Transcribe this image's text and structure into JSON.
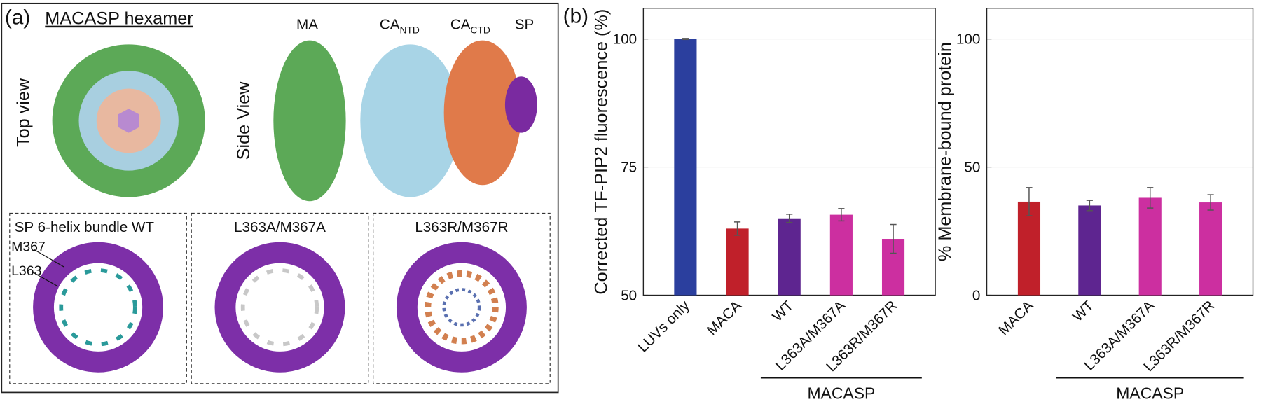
{
  "panel_a": {
    "label": "(a)",
    "title": "MACASP hexamer",
    "top_view": "Top view",
    "side_view": "Side View",
    "domains": {
      "ma": "MA",
      "ca_ntd": "CA",
      "ca_ntd_sub": "NTD",
      "ca_ctd": "CA",
      "ca_ctd_sub": "CTD",
      "sp": "SP"
    },
    "bundles": [
      "SP 6-helix bundle WT",
      "L363A/M367A",
      "L363R/M367R"
    ],
    "residues": [
      "M367",
      "L363"
    ]
  },
  "panel_b": {
    "label": "(b)"
  },
  "chart_data": [
    {
      "type": "bar",
      "y_label": "Corrected TF-PIP2 fluorescence (%)",
      "categories": [
        "LUVs only",
        "MACA",
        "WT",
        "L363A/M367A",
        "L363R/M367R"
      ],
      "values": [
        100,
        63,
        65,
        65.7,
        61
      ],
      "errors": [
        0.1,
        1.3,
        0.8,
        1.2,
        2.8
      ],
      "colors": [
        "#2b3f9e",
        "#c0202a",
        "#5e2590",
        "#cc2fa0",
        "#cc2fa0"
      ],
      "ylim": [
        50,
        106
      ],
      "yticks": [
        50,
        75,
        100
      ],
      "grid": true,
      "group": {
        "label": "MACASP",
        "members": [
          "WT",
          "L363A/M367A",
          "L363R/M367R"
        ]
      }
    },
    {
      "type": "bar",
      "y_label": "% Membrane-bound protein",
      "categories": [
        "MACA",
        "WT",
        "L363A/M367A",
        "L363R/M367R"
      ],
      "values": [
        36.5,
        35,
        38,
        36.2
      ],
      "errors": [
        5.5,
        2,
        4,
        3
      ],
      "colors": [
        "#c0202a",
        "#5e2590",
        "#cc2fa0",
        "#cc2fa0"
      ],
      "ylim": [
        0,
        112
      ],
      "yticks": [
        0,
        50,
        100
      ],
      "grid": true,
      "group": {
        "label": "MACASP",
        "members": [
          "WT",
          "L363A/M367A",
          "L363R/M367R"
        ]
      }
    }
  ]
}
